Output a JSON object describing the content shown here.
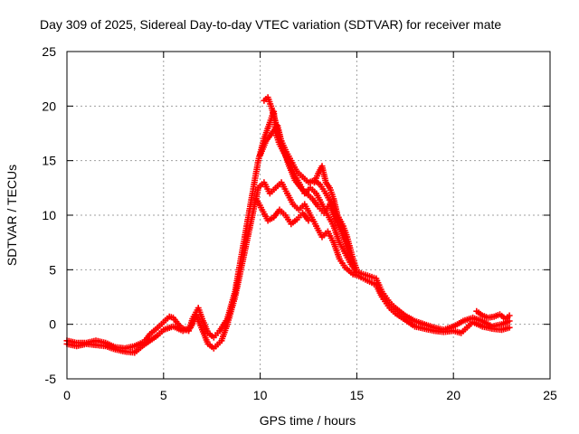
{
  "chart_data": {
    "type": "scatter",
    "title": "Day 309 of 2025, Sidereal Day-to-day VTEC variation (SDTVAR) for receiver mate",
    "xlabel": "GPS time / hours",
    "ylabel": "SDTVAR / TECUs",
    "xlim": [
      0,
      25
    ],
    "ylim": [
      -5,
      25
    ],
    "xticks": [
      0,
      5,
      10,
      15,
      20,
      25
    ],
    "yticks": [
      -5,
      0,
      5,
      10,
      15,
      20,
      25
    ],
    "grid": true,
    "marker": "plus",
    "color": "#ff0000",
    "series": [
      {
        "name": "SDTVAR",
        "points": [
          [
            0.0,
            -1.5
          ],
          [
            0.5,
            -1.7
          ],
          [
            1.0,
            -1.7
          ],
          [
            1.5,
            -1.5
          ],
          [
            2.0,
            -1.7
          ],
          [
            2.5,
            -2.1
          ],
          [
            3.0,
            -2.2
          ],
          [
            3.5,
            -2.0
          ],
          [
            4.0,
            -1.6
          ],
          [
            4.3,
            -0.9
          ],
          [
            4.7,
            -0.3
          ],
          [
            5.0,
            0.2
          ],
          [
            5.3,
            0.7
          ],
          [
            5.5,
            0.6
          ],
          [
            5.9,
            -0.3
          ],
          [
            6.3,
            -0.6
          ],
          [
            6.5,
            0.5
          ],
          [
            6.8,
            1.5
          ],
          [
            7.0,
            0.5
          ],
          [
            7.3,
            -0.8
          ],
          [
            7.6,
            -1.2
          ],
          [
            7.9,
            -0.6
          ],
          [
            8.3,
            0.5
          ],
          [
            8.7,
            3.0
          ],
          [
            9.0,
            6.0
          ],
          [
            9.3,
            9.0
          ],
          [
            9.6,
            12.0
          ],
          [
            9.9,
            15.0
          ],
          [
            10.2,
            17.0
          ],
          [
            10.5,
            18.5
          ],
          [
            10.7,
            19.5
          ],
          [
            10.8,
            17.5
          ],
          [
            11.0,
            16.5
          ],
          [
            11.3,
            15.5
          ],
          [
            11.7,
            14.0
          ],
          [
            12.0,
            13.0
          ],
          [
            12.3,
            12.0
          ],
          [
            12.6,
            12.5
          ],
          [
            12.9,
            12.0
          ],
          [
            13.2,
            11.0
          ],
          [
            13.5,
            10.0
          ],
          [
            13.8,
            9.0
          ],
          [
            14.1,
            7.5
          ],
          [
            14.4,
            6.5
          ],
          [
            14.7,
            5.5
          ],
          [
            15.0,
            4.8
          ],
          [
            16.0,
            4.2
          ],
          [
            16.3,
            3.0
          ],
          [
            16.7,
            2.0
          ],
          [
            17.0,
            1.5
          ],
          [
            17.5,
            0.8
          ],
          [
            18.0,
            0.3
          ],
          [
            18.5,
            0.0
          ],
          [
            19.0,
            -0.3
          ],
          [
            19.5,
            -0.5
          ],
          [
            20.0,
            -0.2
          ],
          [
            20.5,
            0.3
          ],
          [
            21.0,
            0.6
          ],
          [
            21.5,
            0.3
          ],
          [
            22.0,
            -0.2
          ],
          [
            22.5,
            0.0
          ],
          [
            22.9,
            0.3
          ]
        ]
      },
      {
        "name": "SDTVAR",
        "points": [
          [
            0.0,
            -1.8
          ],
          [
            0.5,
            -2.0
          ],
          [
            1.0,
            -1.8
          ],
          [
            1.5,
            -1.9
          ],
          [
            2.0,
            -2.0
          ],
          [
            2.5,
            -2.3
          ],
          [
            3.0,
            -2.5
          ],
          [
            3.5,
            -2.6
          ],
          [
            3.9,
            -2.0
          ],
          [
            4.3,
            -1.5
          ],
          [
            4.7,
            -1.0
          ],
          [
            5.0,
            -0.5
          ],
          [
            5.5,
            -0.2
          ],
          [
            6.0,
            -0.6
          ],
          [
            6.4,
            -0.3
          ],
          [
            6.7,
            0.8
          ],
          [
            7.0,
            -0.5
          ],
          [
            7.3,
            -1.8
          ],
          [
            7.6,
            -2.2
          ],
          [
            8.0,
            -1.5
          ],
          [
            8.3,
            0.0
          ],
          [
            8.7,
            2.5
          ],
          [
            9.0,
            5.0
          ],
          [
            9.3,
            7.5
          ],
          [
            9.6,
            10.0
          ],
          [
            9.9,
            12.5
          ],
          [
            10.2,
            13.0
          ],
          [
            10.5,
            12.0
          ],
          [
            10.8,
            12.5
          ],
          [
            11.1,
            13.0
          ],
          [
            11.4,
            12.0
          ],
          [
            11.7,
            11.0
          ],
          [
            12.0,
            10.5
          ],
          [
            12.3,
            11.0
          ],
          [
            12.6,
            10.0
          ],
          [
            12.9,
            9.0
          ],
          [
            13.2,
            8.0
          ],
          [
            13.5,
            8.5
          ],
          [
            13.8,
            7.5
          ],
          [
            14.1,
            6.0
          ],
          [
            14.4,
            5.2
          ],
          [
            14.8,
            4.6
          ],
          [
            15.0,
            4.5
          ],
          [
            16.0,
            3.6
          ],
          [
            16.3,
            2.5
          ],
          [
            16.7,
            1.5
          ],
          [
            17.0,
            1.0
          ],
          [
            17.5,
            0.4
          ],
          [
            18.0,
            -0.2
          ],
          [
            18.5,
            -0.4
          ],
          [
            19.0,
            -0.6
          ],
          [
            19.5,
            -0.7
          ],
          [
            20.0,
            -0.6
          ],
          [
            20.4,
            -0.8
          ],
          [
            21.0,
            0.2
          ],
          [
            21.5,
            -0.2
          ],
          [
            22.0,
            -0.4
          ],
          [
            22.5,
            -0.5
          ],
          [
            22.9,
            -0.3
          ]
        ]
      },
      {
        "name": "SDTVAR",
        "points": [
          [
            9.8,
            11.5
          ],
          [
            10.1,
            10.5
          ],
          [
            10.4,
            9.5
          ],
          [
            10.7,
            9.8
          ],
          [
            11.0,
            10.5
          ],
          [
            11.3,
            10.0
          ],
          [
            11.6,
            9.2
          ],
          [
            11.9,
            9.6
          ],
          [
            12.2,
            10.2
          ],
          [
            12.5,
            9.5
          ]
        ]
      },
      {
        "name": "SDTVAR",
        "points": [
          [
            10.0,
            15.5
          ],
          [
            10.3,
            16.8
          ],
          [
            10.6,
            17.5
          ],
          [
            10.9,
            18.2
          ],
          [
            11.2,
            16.0
          ],
          [
            11.5,
            14.5
          ],
          [
            11.8,
            13.2
          ],
          [
            12.1,
            12.5
          ],
          [
            12.4,
            12.0
          ],
          [
            12.7,
            11.5
          ],
          [
            13.0,
            10.8
          ],
          [
            13.3,
            10.2
          ],
          [
            13.6,
            11.0
          ],
          [
            13.9,
            9.5
          ],
          [
            14.2,
            8.5
          ],
          [
            14.5,
            7.0
          ],
          [
            14.8,
            5.8
          ]
        ]
      },
      {
        "name": "SDTVAR",
        "points": [
          [
            10.2,
            20.5
          ],
          [
            10.4,
            20.8
          ],
          [
            10.6,
            19.8
          ],
          [
            10.8,
            18.5
          ],
          [
            11.0,
            17.2
          ],
          [
            11.3,
            16.0
          ],
          [
            11.6,
            15.0
          ],
          [
            11.9,
            14.0
          ],
          [
            12.2,
            13.5
          ],
          [
            12.5,
            13.0
          ],
          [
            12.8,
            13.2
          ],
          [
            13.1,
            12.8
          ],
          [
            13.4,
            12.0
          ],
          [
            13.7,
            11.0
          ],
          [
            14.0,
            10.0
          ],
          [
            14.3,
            8.5
          ],
          [
            14.6,
            7.0
          ]
        ]
      },
      {
        "name": "SDTVAR",
        "points": [
          [
            12.8,
            13.0
          ],
          [
            13.0,
            13.8
          ],
          [
            13.2,
            14.5
          ],
          [
            13.4,
            13.0
          ],
          [
            13.6,
            12.5
          ],
          [
            13.8,
            11.5
          ],
          [
            14.0,
            10.0
          ],
          [
            14.3,
            9.0
          ],
          [
            14.5,
            8.0
          ],
          [
            14.8,
            6.0
          ],
          [
            15.0,
            5.0
          ]
        ]
      },
      {
        "name": "SDTVAR",
        "points": [
          [
            21.2,
            1.2
          ],
          [
            21.5,
            0.8
          ],
          [
            21.8,
            0.6
          ],
          [
            22.1,
            0.7
          ],
          [
            22.4,
            0.9
          ],
          [
            22.7,
            0.5
          ],
          [
            22.9,
            0.8
          ]
        ]
      }
    ]
  }
}
